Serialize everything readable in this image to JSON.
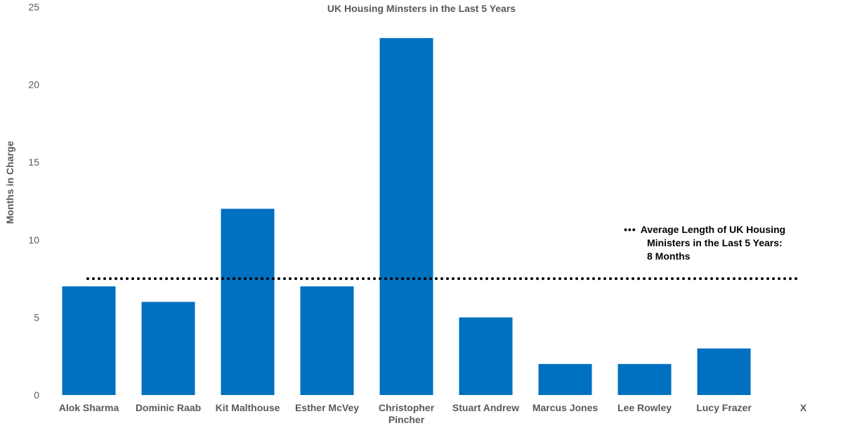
{
  "chart_data": {
    "type": "bar",
    "title": "UK Housing Minsters in the Last 5 Years",
    "ylabel": "Months in Charge",
    "xlabel": "",
    "categories": [
      "Alok Sharma",
      "Dominic Raab",
      "Kit Malthouse",
      "Esther McVey",
      "Christopher Pincher",
      "Stuart Andrew",
      "Marcus Jones",
      "Lee Rowley",
      "Lucy Frazer",
      "X"
    ],
    "values": [
      7,
      6,
      12,
      7,
      23,
      5,
      2,
      2,
      3,
      null
    ],
    "ylim": [
      0,
      25
    ],
    "yticks": [
      0,
      5,
      10,
      15,
      20,
      25
    ],
    "bar_color": "#0070C0",
    "grid": false,
    "average_line": {
      "value": 7.5,
      "style": "dotted",
      "color": "#000000",
      "label_lines": [
        "Average Length of UK Housing",
        "Ministers in the Last 5 Years:",
        "8 Months"
      ],
      "legend_placement": "right"
    }
  }
}
